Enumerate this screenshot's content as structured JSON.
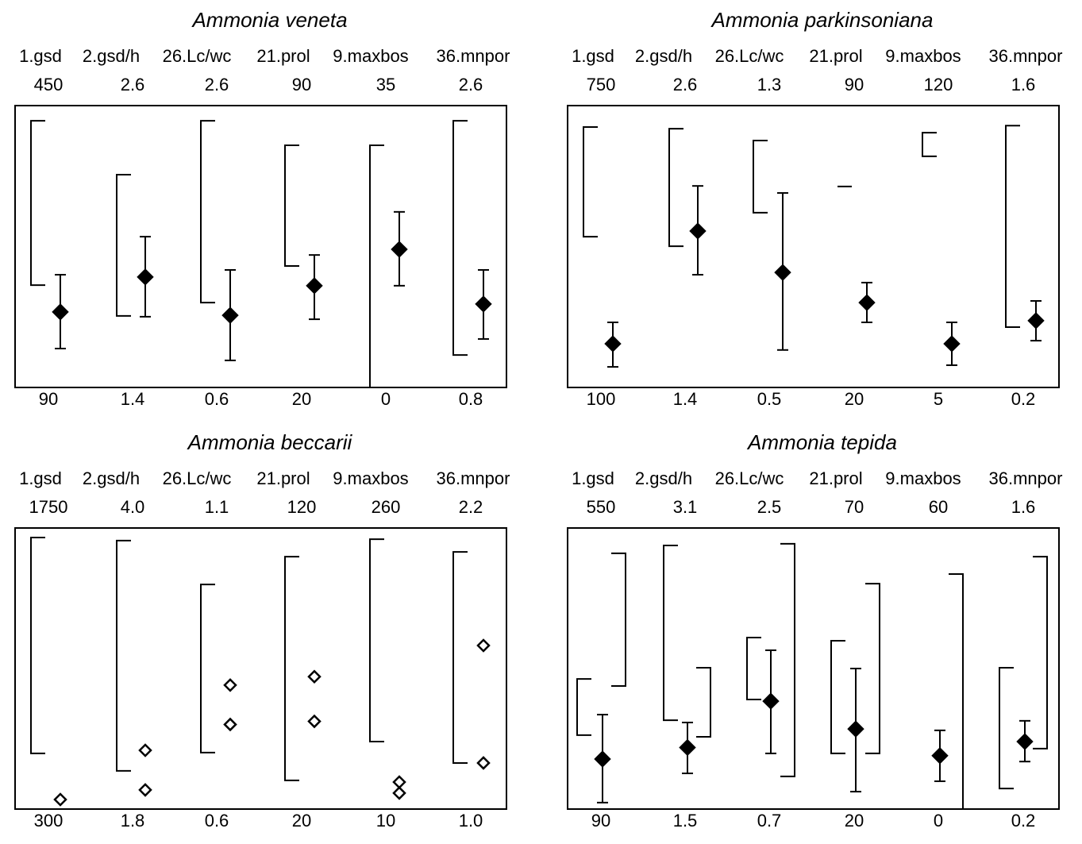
{
  "figure": {
    "variables": [
      "1.gsd",
      "2.gsd/h",
      "26.Lc/wc",
      "21.prol",
      "9.maxbos",
      "36.mnpor"
    ]
  },
  "chart_data": [
    {
      "type": "scatter",
      "title": "Ammonia veneta",
      "panel_position": "top-left",
      "categories": [
        "1.gsd",
        "2.gsd/h",
        "26.Lc/wc",
        "21.prol",
        "9.maxbos",
        "36.mnpor"
      ],
      "axis_max_labels": [
        "450",
        "2.6",
        "2.6",
        "90",
        "35",
        "2.6"
      ],
      "axis_min_labels": [
        "90",
        "1.4",
        "0.6",
        "20",
        "0",
        "0.8"
      ],
      "axis_max": [
        450,
        2.6,
        2.6,
        90,
        35,
        2.6
      ],
      "axis_min": [
        90,
        1.4,
        0.6,
        20,
        0,
        0.8
      ],
      "marker": "filled-diamond",
      "ranges": [
        {
          "side": "left",
          "low_frac": 0.363,
          "high_frac": 0.946,
          "low": 221,
          "high": 431
        },
        {
          "side": "left",
          "low_frac": 0.254,
          "high_frac": 0.755,
          "low": 1.7,
          "high": 2.31
        },
        {
          "side": "left",
          "low_frac": 0.301,
          "high_frac": 0.946,
          "low": 1.2,
          "high": 2.49
        },
        {
          "side": "left",
          "low_frac": 0.431,
          "high_frac": 0.859,
          "low": 50,
          "high": 80
        },
        {
          "side": "left",
          "low_frac": 0.0,
          "high_frac": 0.859,
          "low": 0,
          "high": 30
        },
        {
          "side": "left",
          "low_frac": 0.115,
          "high_frac": 0.946,
          "low": 1.01,
          "high": 2.5
        }
      ],
      "points": [
        {
          "frac": 0.268,
          "err_low_frac": 0.138,
          "err_high_frac": 0.4,
          "value": 186,
          "err_low": 140,
          "err_high": 234
        },
        {
          "frac": 0.392,
          "err_low_frac": 0.251,
          "err_high_frac": 0.535,
          "value": 1.87,
          "err_low": 1.7,
          "err_high": 2.04
        },
        {
          "frac": 0.256,
          "err_low_frac": 0.096,
          "err_high_frac": 0.417,
          "value": 1.11,
          "err_low": 0.79,
          "err_high": 1.43
        },
        {
          "frac": 0.361,
          "err_low_frac": 0.242,
          "err_high_frac": 0.47,
          "value": 45,
          "err_low": 37,
          "err_high": 53
        },
        {
          "frac": 0.49,
          "err_low_frac": 0.361,
          "err_high_frac": 0.623,
          "value": 17,
          "err_low": 13,
          "err_high": 22
        },
        {
          "frac": 0.296,
          "err_low_frac": 0.172,
          "err_high_frac": 0.417,
          "value": 1.33,
          "err_low": 1.11,
          "err_high": 1.55
        }
      ]
    },
    {
      "type": "scatter",
      "title": "Ammonia parkinsoniana",
      "panel_position": "top-right",
      "categories": [
        "1.gsd",
        "2.gsd/h",
        "26.Lc/wc",
        "21.prol",
        "9.maxbos",
        "36.mnpor"
      ],
      "axis_max_labels": [
        "750",
        "2.6",
        "1.3",
        "90",
        "120",
        "1.6"
      ],
      "axis_min_labels": [
        "100",
        "1.4",
        "0.5",
        "20",
        "5",
        "0.2"
      ],
      "axis_max": [
        750,
        2.6,
        1.3,
        90,
        120,
        1.6
      ],
      "axis_min": [
        100,
        1.4,
        0.5,
        20,
        5,
        0.2
      ],
      "marker": "filled-diamond",
      "ranges": [
        {
          "side": "left",
          "low_frac": 0.535,
          "high_frac": 0.924,
          "low": 448,
          "high": 701
        },
        {
          "side": "left",
          "low_frac": 0.501,
          "high_frac": 0.918,
          "low": 2.0,
          "high": 2.5
        },
        {
          "side": "left",
          "low_frac": 0.62,
          "high_frac": 0.876,
          "low": 1.0,
          "high": 1.2
        },
        {
          "side": "left",
          "low_frac": 0.713,
          "high_frac": 0.713,
          "low": 70,
          "high": 70
        },
        {
          "side": "left",
          "low_frac": 0.82,
          "high_frac": 0.904,
          "low": 99,
          "high": 109
        },
        {
          "side": "left",
          "low_frac": 0.214,
          "high_frac": 0.929,
          "low": 0.5,
          "high": 1.5
        }
      ],
      "points": [
        {
          "frac": 0.155,
          "err_low_frac": 0.073,
          "err_high_frac": 0.231,
          "value": 201,
          "err_low": 147,
          "err_high": 250
        },
        {
          "frac": 0.555,
          "err_low_frac": 0.4,
          "err_high_frac": 0.715,
          "value": 2.07,
          "err_low": 1.88,
          "err_high": 2.26
        },
        {
          "frac": 0.408,
          "err_low_frac": 0.133,
          "err_high_frac": 0.69,
          "value": 0.83,
          "err_low": 0.61,
          "err_high": 1.05
        },
        {
          "frac": 0.301,
          "err_low_frac": 0.231,
          "err_high_frac": 0.372,
          "value": 41,
          "err_low": 36,
          "err_high": 46
        },
        {
          "frac": 0.155,
          "err_low_frac": 0.079,
          "err_high_frac": 0.231,
          "value": 23,
          "err_low": 14,
          "err_high": 32
        },
        {
          "frac": 0.237,
          "err_low_frac": 0.166,
          "err_high_frac": 0.307,
          "value": 0.53,
          "err_low": 0.43,
          "err_high": 0.63
        }
      ]
    },
    {
      "type": "scatter",
      "title": "Ammonia beccarii",
      "panel_position": "bottom-left",
      "categories": [
        "1.gsd",
        "2.gsd/h",
        "26.Lc/wc",
        "21.prol",
        "9.maxbos",
        "36.mnpor"
      ],
      "axis_max_labels": [
        "1750",
        "4.0",
        "1.1",
        "120",
        "260",
        "2.2"
      ],
      "axis_min_labels": [
        "300",
        "1.8",
        "0.6",
        "20",
        "10",
        "1.0"
      ],
      "axis_max": [
        1750,
        4.0,
        1.1,
        120,
        260,
        2.2
      ],
      "axis_min": [
        300,
        1.8,
        0.6,
        20,
        10,
        1.0
      ],
      "marker": "open-diamond",
      "ranges": [
        {
          "side": "left",
          "low_frac": 0.198,
          "high_frac": 0.966,
          "low": 587,
          "high": 1701
        },
        {
          "side": "left",
          "low_frac": 0.136,
          "high_frac": 0.955,
          "low": 2.1,
          "high": 3.9
        },
        {
          "side": "left",
          "low_frac": 0.201,
          "high_frac": 0.799,
          "low": 0.7,
          "high": 1.0
        },
        {
          "side": "left",
          "low_frac": 0.102,
          "high_frac": 0.898,
          "low": 30,
          "high": 110
        },
        {
          "side": "left",
          "low_frac": 0.24,
          "high_frac": 0.96,
          "low": 70,
          "high": 250
        },
        {
          "side": "left",
          "low_frac": 0.164,
          "high_frac": 0.915,
          "low": 1.2,
          "high": 2.1
        }
      ],
      "points": [
        {
          "frac": 0.034,
          "value": 349
        },
        {
          "frac": 0.209,
          "value": 2.26
        },
        {
          "frac": 0.068,
          "value": 1.95
        },
        {
          "frac": 0.441,
          "value": 0.82
        },
        {
          "frac": 0.301,
          "value": 0.75
        },
        {
          "frac": 0.471,
          "value": 67
        },
        {
          "frac": 0.312,
          "value": 51
        },
        {
          "frac": 0.096,
          "value": 34
        },
        {
          "frac": 0.057,
          "value": 24
        },
        {
          "frac": 0.582,
          "value": 1.7
        },
        {
          "frac": 0.164,
          "value": 1.2
        }
      ],
      "point_columns": [
        0,
        1,
        1,
        2,
        2,
        3,
        3,
        4,
        4,
        5,
        5
      ]
    },
    {
      "type": "scatter",
      "title": "Ammonia tepida",
      "panel_position": "bottom-right",
      "categories": [
        "1.gsd",
        "2.gsd/h",
        "26.Lc/wc",
        "21.prol",
        "9.maxbos",
        "36.mnpor"
      ],
      "axis_max_labels": [
        "550",
        "3.1",
        "2.5",
        "70",
        "60",
        "1.6"
      ],
      "axis_min_labels": [
        "90",
        "1.5",
        "0.7",
        "20",
        "0",
        "0.2"
      ],
      "axis_max": [
        550,
        3.1,
        2.5,
        70,
        60,
        1.6
      ],
      "axis_min": [
        90,
        1.5,
        0.7,
        20,
        0,
        0.2
      ],
      "marker": "filled-diamond",
      "ranges": [
        {
          "side": "left",
          "low_frac": 0.263,
          "high_frac": 0.463,
          "low": 211,
          "high": 303
        },
        {
          "side": "right",
          "low_frac": 0.438,
          "high_frac": 0.91,
          "low": 291,
          "high": 509
        },
        {
          "side": "left",
          "low_frac": 0.316,
          "high_frac": 0.938,
          "low": 2.01,
          "high": 3.0
        },
        {
          "side": "right",
          "low_frac": 0.257,
          "high_frac": 0.503,
          "low": 1.91,
          "high": 2.3
        },
        {
          "side": "left",
          "low_frac": 0.39,
          "high_frac": 0.61,
          "low": 1.4,
          "high": 1.8
        },
        {
          "side": "right",
          "low_frac": 0.116,
          "high_frac": 0.944,
          "low": 0.91,
          "high": 2.4
        },
        {
          "side": "left",
          "low_frac": 0.198,
          "high_frac": 0.599,
          "low": 30,
          "high": 50
        },
        {
          "side": "right",
          "low_frac": 0.198,
          "high_frac": 0.802,
          "low": 30,
          "high": 60
        },
        {
          "side": "right",
          "low_frac": 0.0,
          "high_frac": 0.836,
          "low": 0,
          "high": 50
        },
        {
          "side": "left",
          "low_frac": 0.073,
          "high_frac": 0.503,
          "low": 0.3,
          "high": 0.9
        },
        {
          "side": "right",
          "low_frac": 0.215,
          "high_frac": 0.898,
          "low": 0.5,
          "high": 1.46
        }
      ],
      "range_columns": [
        0,
        0,
        1,
        1,
        2,
        2,
        3,
        3,
        4,
        5,
        5
      ],
      "points": [
        {
          "frac": 0.178,
          "err_low_frac": 0.023,
          "err_high_frac": 0.336,
          "value": 172,
          "err_low": 101,
          "err_high": 245
        },
        {
          "frac": 0.219,
          "err_low_frac": 0.127,
          "err_high_frac": 0.308,
          "value": 1.85,
          "err_low": 1.7,
          "err_high": 1.99
        },
        {
          "frac": 0.384,
          "err_low_frac": 0.198,
          "err_high_frac": 0.565,
          "value": 1.39,
          "err_low": 1.06,
          "err_high": 1.72
        },
        {
          "frac": 0.285,
          "err_low_frac": 0.062,
          "err_high_frac": 0.5,
          "value": 34,
          "err_low": 23,
          "err_high": 45
        },
        {
          "frac": 0.19,
          "err_low_frac": 0.099,
          "err_high_frac": 0.28,
          "value": 11,
          "err_low": 6,
          "err_high": 17
        },
        {
          "frac": 0.24,
          "err_low_frac": 0.169,
          "err_high_frac": 0.314,
          "value": 0.54,
          "err_low": 0.44,
          "err_high": 0.64
        }
      ]
    }
  ]
}
